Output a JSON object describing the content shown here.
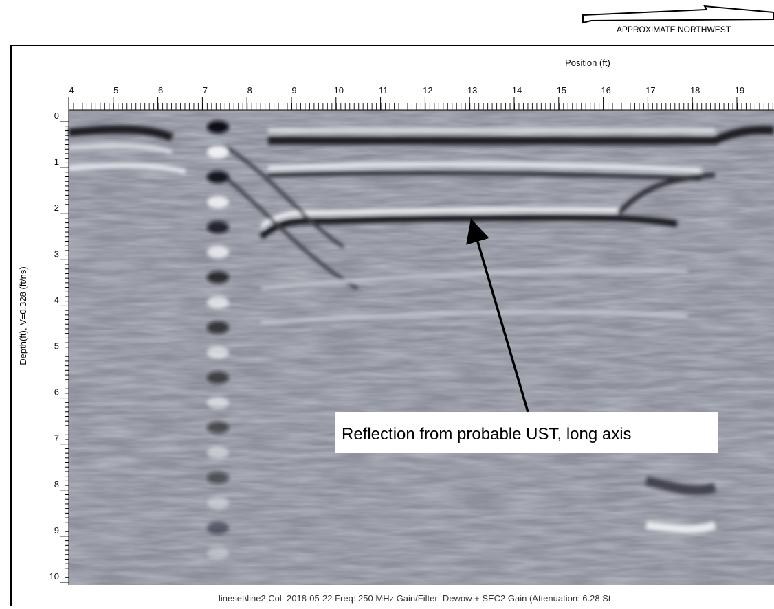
{
  "header": {
    "direction": "APPROXIMATE NORTHWEST"
  },
  "position_axis": {
    "label": "Position (ft)",
    "ticks": [
      4,
      5,
      6,
      7,
      8,
      9,
      10,
      11,
      12,
      13,
      14,
      15,
      16,
      17,
      18,
      19
    ]
  },
  "depth_axis": {
    "label": "Depth(ft), V=0.328 (ft/ns)",
    "ticks": [
      0,
      1,
      2,
      3,
      4,
      5,
      6,
      7,
      8,
      9,
      10
    ]
  },
  "annotation": "Reflection from probable UST, long axis",
  "footer": "lineset\\line2  Col: 2018-05-22 Freq: 250 MHz Gain/Filter: Dewow + SEC2 Gain (Attenuation: 6.28 St"
}
